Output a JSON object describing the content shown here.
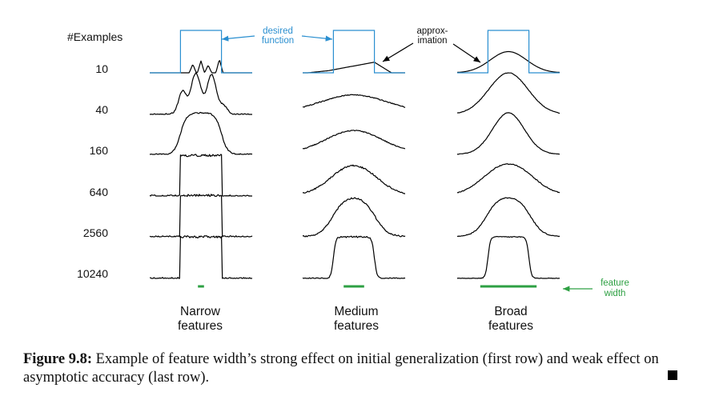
{
  "header": {
    "examples_label": "#Examples"
  },
  "rows": [
    "10",
    "40",
    "160",
    "640",
    "2560",
    "10240"
  ],
  "columns": [
    {
      "line1": "Narrow",
      "line2": "features"
    },
    {
      "line1": "Medium",
      "line2": "features"
    },
    {
      "line1": "Broad",
      "line2": "features"
    }
  ],
  "annotations": {
    "desired_line1": "desired",
    "desired_line2": "function",
    "approx_line1": "approx-",
    "approx_line2": "imation",
    "feature_line1": "feature",
    "feature_line2": "width"
  },
  "colors": {
    "desired": "#2a8fd0",
    "feature": "#2ea043",
    "curve": "#000000"
  },
  "caption": {
    "label": "Figure 9.8:",
    "text": "Example of feature width’s strong effect on initial generalization (first row) and weak effect on asymptotic accuracy (last row)."
  }
}
